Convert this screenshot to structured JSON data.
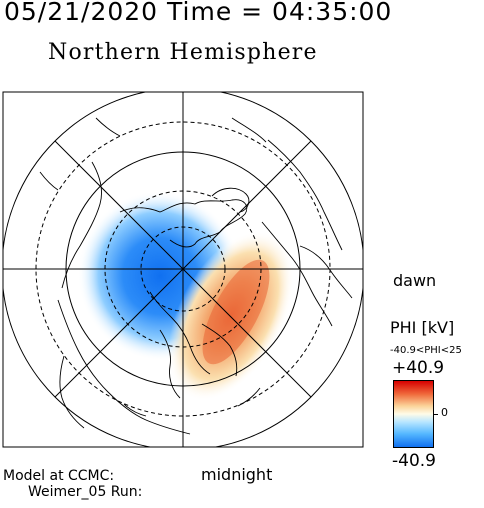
{
  "header": {
    "date_time": "05/21/2020 Time = 04:35:00",
    "hemisphere": "Northern Hemisphere"
  },
  "labels": {
    "dawn": "dawn",
    "midnight": "midnight"
  },
  "colorbar": {
    "title": "PHI [kV]",
    "range_text": "-40.9<PHI<25",
    "max_label": "+40.9",
    "min_label": "-40.9",
    "zero_label": "0",
    "max_value": 40.9,
    "min_value": -40.9,
    "colors": {
      "high": "#d70000",
      "mid": "#fffbe8",
      "low": "#1070f0"
    }
  },
  "footer": {
    "model": "Model at CCMC:",
    "run": "Weimer_05 Run:"
  }
}
